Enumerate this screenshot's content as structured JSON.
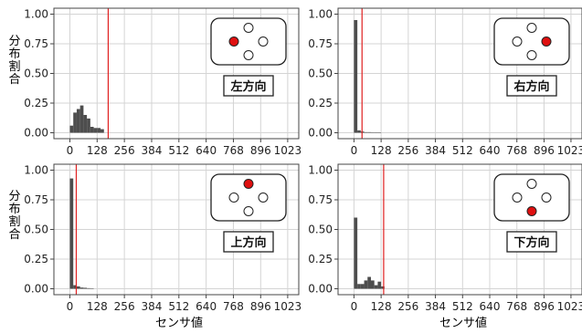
{
  "figure": {
    "ylabel": "分布割合",
    "xlabel": "センサ値",
    "xticks": [
      0,
      128,
      256,
      384,
      512,
      640,
      768,
      896,
      1023
    ],
    "yticks": [
      0.0,
      0.25,
      0.5,
      0.75,
      1.0
    ],
    "ylim": [
      0,
      1.0
    ],
    "xlim": [
      0,
      1023
    ]
  },
  "chart_data": [
    {
      "type": "bar",
      "label": "左方向",
      "active_sensor": "left",
      "threshold": 180,
      "bin_width": 16,
      "bins": [
        {
          "x": 0,
          "y": 0.06
        },
        {
          "x": 16,
          "y": 0.17
        },
        {
          "x": 32,
          "y": 0.2
        },
        {
          "x": 48,
          "y": 0.23
        },
        {
          "x": 64,
          "y": 0.15
        },
        {
          "x": 80,
          "y": 0.12
        },
        {
          "x": 96,
          "y": 0.05
        },
        {
          "x": 112,
          "y": 0.04
        },
        {
          "x": 128,
          "y": 0.04
        },
        {
          "x": 144,
          "y": 0.03
        }
      ]
    },
    {
      "type": "bar",
      "label": "右方向",
      "active_sensor": "right",
      "threshold": 38,
      "bin_width": 16,
      "bins": [
        {
          "x": 0,
          "y": 0.95
        },
        {
          "x": 16,
          "y": 0.02
        },
        {
          "x": 32,
          "y": 0.01
        },
        {
          "x": 48,
          "y": 0.005
        },
        {
          "x": 64,
          "y": 0.005
        },
        {
          "x": 80,
          "y": 0.003
        },
        {
          "x": 96,
          "y": 0.003
        },
        {
          "x": 112,
          "y": 0.002
        }
      ]
    },
    {
      "type": "bar",
      "label": "上方向",
      "active_sensor": "top",
      "threshold": 30,
      "bin_width": 16,
      "bins": [
        {
          "x": 0,
          "y": 0.93
        },
        {
          "x": 16,
          "y": 0.03
        },
        {
          "x": 32,
          "y": 0.02
        },
        {
          "x": 48,
          "y": 0.01
        },
        {
          "x": 64,
          "y": 0.008
        },
        {
          "x": 80,
          "y": 0.005
        },
        {
          "x": 96,
          "y": 0.003
        }
      ]
    },
    {
      "type": "bar",
      "label": "下方向",
      "active_sensor": "bottom",
      "threshold": 140,
      "bin_width": 16,
      "bins": [
        {
          "x": 0,
          "y": 0.6
        },
        {
          "x": 16,
          "y": 0.04
        },
        {
          "x": 32,
          "y": 0.04
        },
        {
          "x": 48,
          "y": 0.07
        },
        {
          "x": 64,
          "y": 0.1
        },
        {
          "x": 80,
          "y": 0.07
        },
        {
          "x": 96,
          "y": 0.03
        },
        {
          "x": 112,
          "y": 0.06
        },
        {
          "x": 128,
          "y": 0.02
        }
      ]
    }
  ],
  "colors": {
    "bar": "#4d4d4d",
    "threshold": "#e02020",
    "active_sensor": "#e01010",
    "grid": "#d4d4d4",
    "frame": "#444444"
  }
}
